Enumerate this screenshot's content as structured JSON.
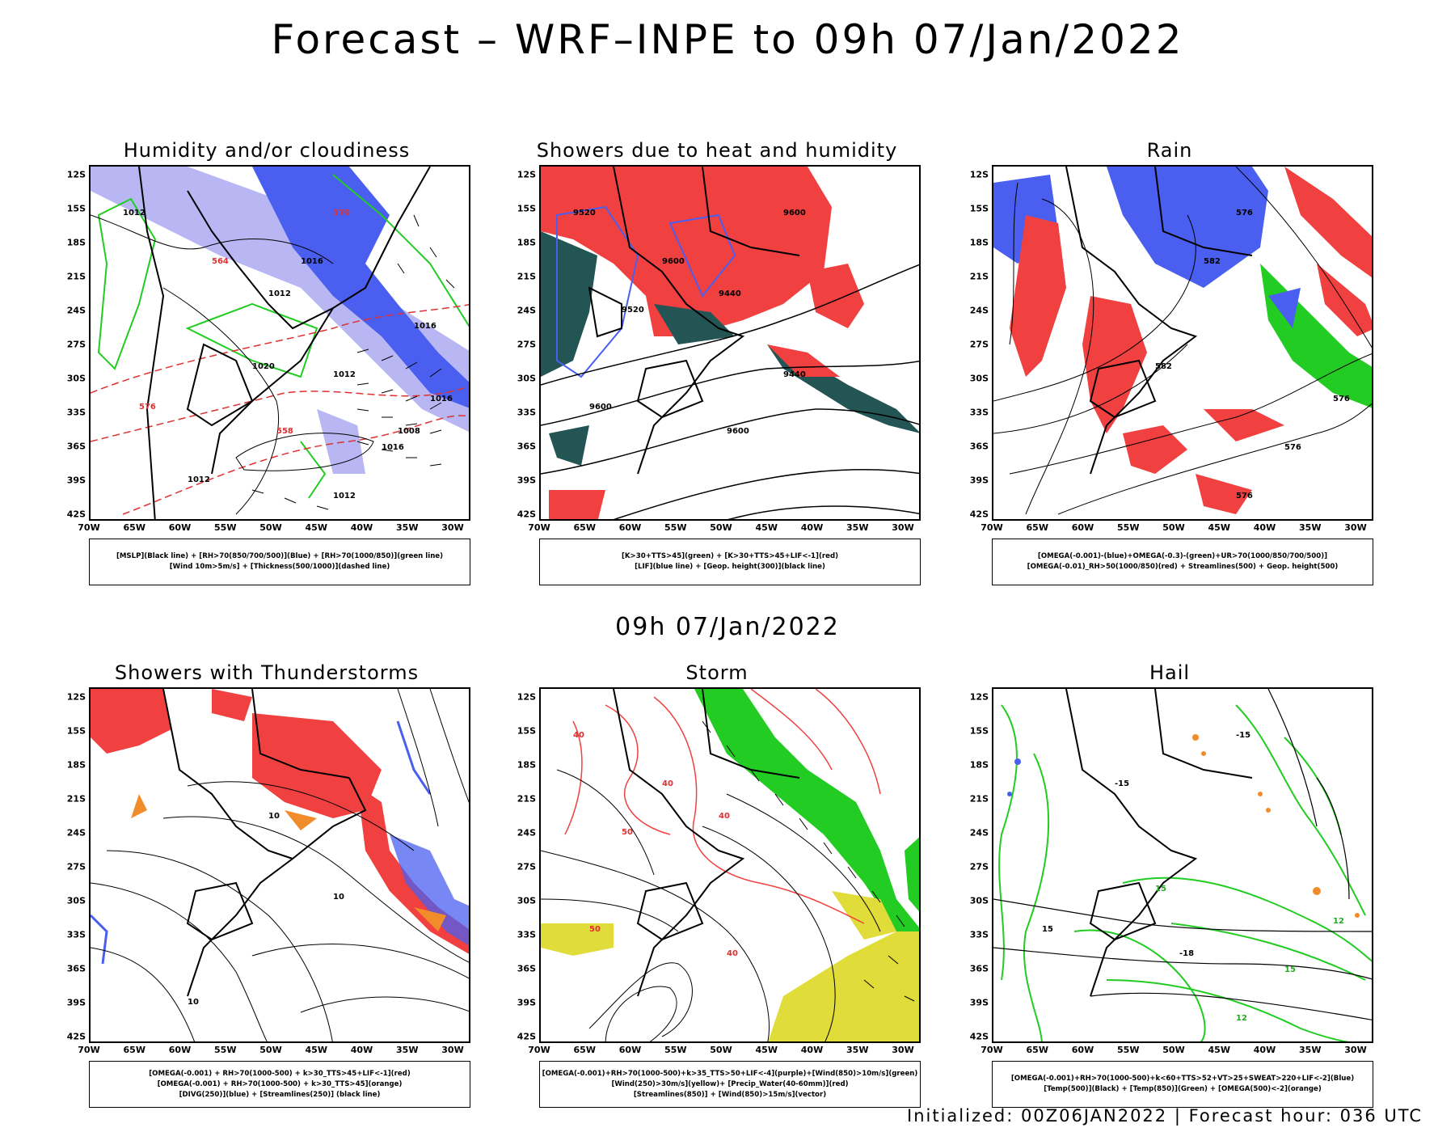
{
  "header": {
    "title": "Forecast – WRF–INPE to 09h 07/Jan/2022"
  },
  "middle": {
    "title": "09h 07/Jan/2022"
  },
  "footer": {
    "text": "Initialized: 00Z06JAN2022 | Forecast hour: 036 UTC"
  },
  "axes": {
    "lat": [
      "12S",
      "15S",
      "18S",
      "21S",
      "24S",
      "27S",
      "30S",
      "33S",
      "36S",
      "39S",
      "42S"
    ],
    "lon": [
      "70W",
      "65W",
      "60W",
      "55W",
      "50W",
      "45W",
      "40W",
      "35W",
      "30W"
    ]
  },
  "colors": {
    "blue": "#4a5ff0",
    "lightblue": "#b9b7f3",
    "green": "#22cc22",
    "red": "#f04040",
    "darkteal": "#245555",
    "orange": "#f08c2a",
    "yellow": "#e0dc3a",
    "purple": "#b040c0",
    "black": "#000000"
  },
  "panels": [
    {
      "id": "humidity",
      "title": "Humidity and/or cloudiness",
      "legend": [
        "[MSLP](Black line) + [RH>70(850/700/500)](Blue) + [RH>70(1000/850)](green line)",
        "[Wind 10m>5m/s] + [Thickness(500/1000)](dashed line)"
      ],
      "contour_labels": [
        "1012",
        "1012",
        "1012",
        "1012",
        "1008",
        "1016",
        "1016",
        "1020",
        "1016",
        "1016",
        "1012",
        "570",
        "564",
        "558",
        "576"
      ]
    },
    {
      "id": "showers-heat",
      "title": "Showers due to heat and humidity",
      "legend": [
        "[K>30+TTS>45](green) + [K>30+TTS>45+LIF<-1](red)",
        "[LIF](blue line) + [Geop. height(300)](black line)"
      ],
      "contour_labels": [
        "9600",
        "9600",
        "9600",
        "9600",
        "9520",
        "9520",
        "9440",
        "9440"
      ]
    },
    {
      "id": "rain",
      "title": "Rain",
      "legend": [
        "[OMEGA(-0.001)-(blue)+OMEGA(-0.3)-(green)+UR>70(1000/850/700/500)]",
        "[OMEGA(-0.01)_RH>50(1000/850)(red) + Streamlines(500) + Geop. height(500)"
      ],
      "contour_labels": [
        "582",
        "582",
        "576",
        "576",
        "576",
        "576"
      ]
    },
    {
      "id": "thunderstorms",
      "title": "Showers with Thunderstorms",
      "legend": [
        "[OMEGA(-0.001) + RH>70(1000-500) + k>30_TTS>45+LIF<-1](red)",
        "[OMEGA(-0.001) + RH>70(1000-500) + k>30_TTS>45](orange)",
        "[DIVG(250)](blue) + [Streamlines(250)] (black line)"
      ],
      "contour_labels": [
        "10",
        "10",
        "10"
      ]
    },
    {
      "id": "storm",
      "title": "Storm",
      "legend": [
        "[OMEGA(-0.001)+RH>70(1000-500)+k>35_TTS>50+LIF<-4](purple)+[Wind(850)>10m/s](green)",
        "[Wind(250)>30m/s](yellow)+ [Precip_Water(40-60mm)](red)",
        "[Streamlines(850)] + [Wind(850)>15m/s](vector)"
      ],
      "contour_labels": [
        "40",
        "40",
        "50",
        "50",
        "40",
        "40"
      ]
    },
    {
      "id": "hail",
      "title": "Hail",
      "legend": [
        "[OMEGA(-0.001)+RH>70(1000-500)+k<60+TTS>52+VT>25+SWEAT>220+LIF<-2](Blue)",
        "[Temp(500)](Black) + [Temp(850)](Green) + [OMEGA(500)<-2](orange)"
      ],
      "contour_labels": [
        "15",
        "15",
        "12",
        "12",
        "-15",
        "-15",
        "-18",
        "15"
      ]
    }
  ]
}
